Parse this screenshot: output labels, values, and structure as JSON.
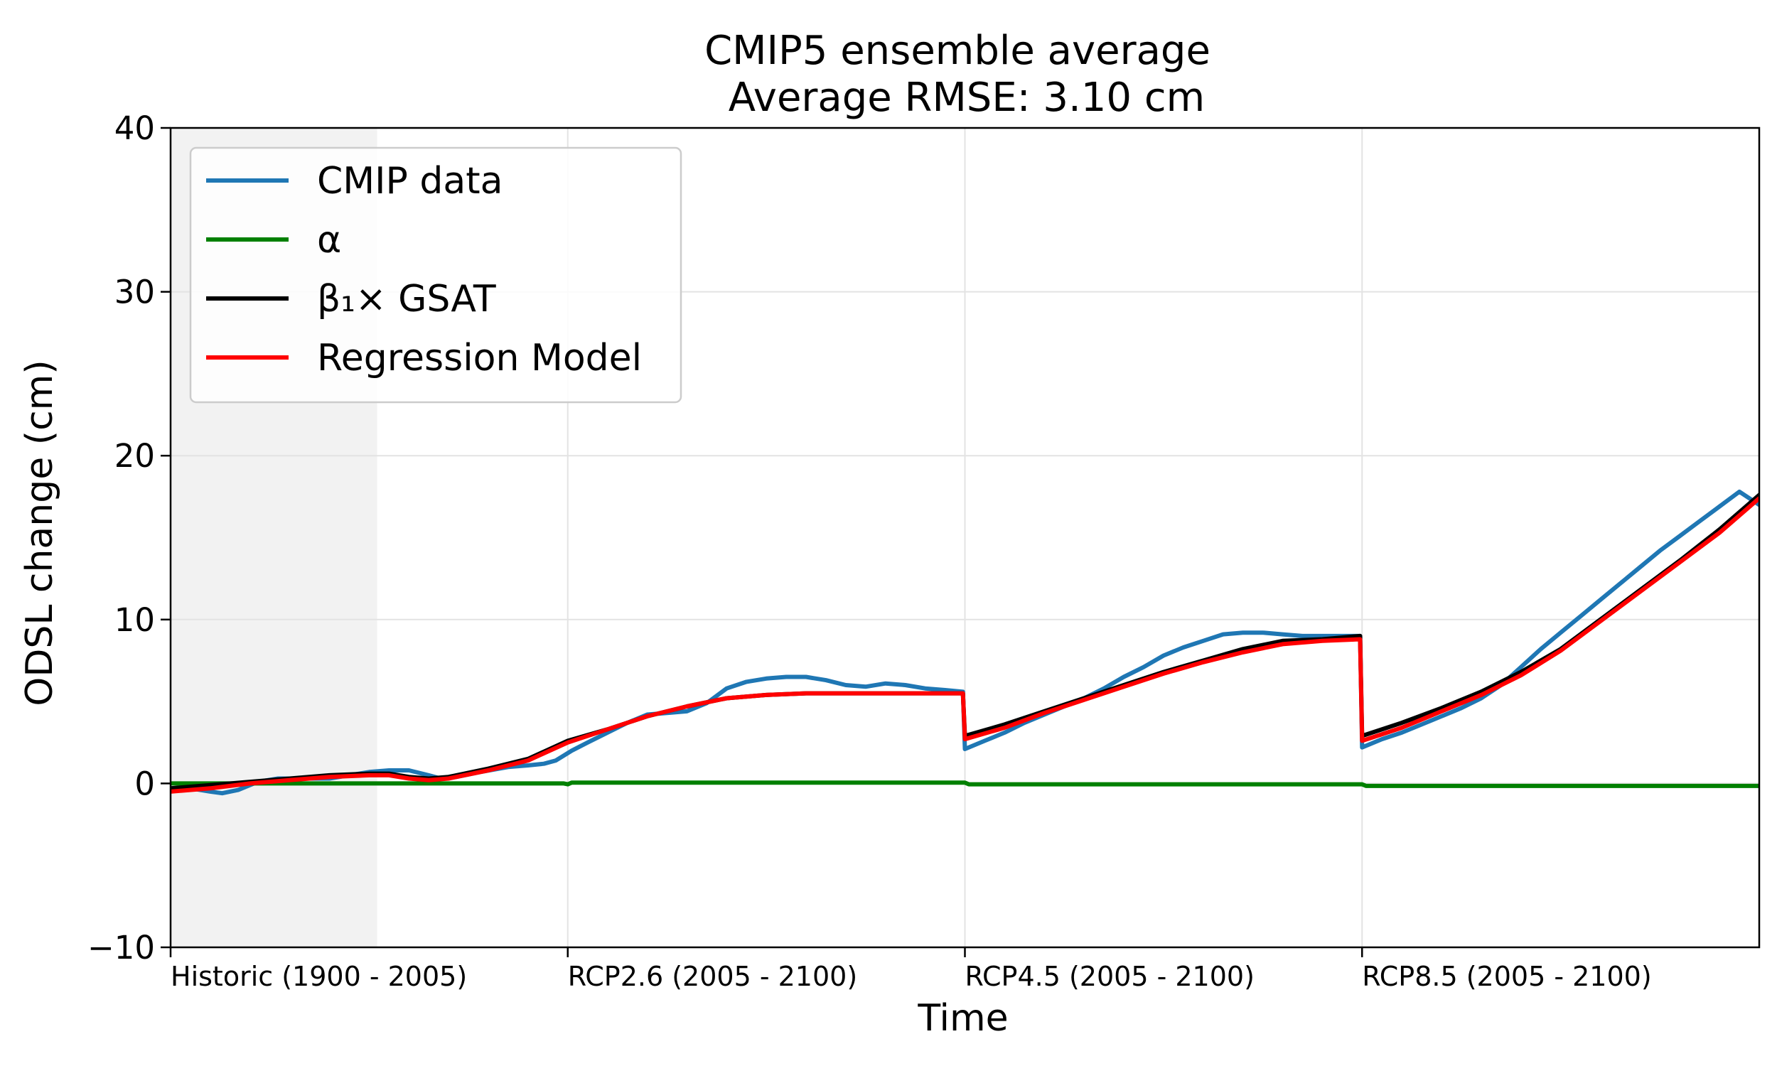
{
  "chart_data": {
    "type": "line",
    "title_line1": "CMIP5 ensemble average",
    "title_line2": "Average RMSE: 3.10 cm",
    "xlabel": "Time",
    "ylabel": "ODSL change (cm)",
    "ylim": [
      -10,
      40
    ],
    "yticks": [
      -10,
      0,
      10,
      20,
      30,
      40
    ],
    "ytick_labels": [
      "−10",
      "0",
      "10",
      "20",
      "30",
      "40"
    ],
    "xlim": [
      0,
      4
    ],
    "xticks": [
      0,
      1,
      2,
      3
    ],
    "xtick_labels": [
      "Historic (1900 - 2005)",
      "RCP2.6 (2005 - 2100)",
      "RCP4.5 (2005 - 2100)",
      "RCP8.5 (2005 - 2100)"
    ],
    "grid": true,
    "legend_position": "upper-left",
    "shaded_region": {
      "x": [
        0,
        0.52
      ],
      "color": "#f2f2f2"
    },
    "series": [
      {
        "name": "CMIP data",
        "color": "#1f77b4",
        "x": [
          0,
          0.05,
          0.1,
          0.13,
          0.17,
          0.22,
          0.27,
          0.33,
          0.4,
          0.45,
          0.5,
          0.55,
          0.6,
          0.65,
          0.68,
          0.72,
          0.78,
          0.85,
          0.9,
          0.94,
          0.97,
          0.99,
          1.01,
          1.05,
          1.1,
          1.15,
          1.2,
          1.25,
          1.3,
          1.35,
          1.4,
          1.45,
          1.5,
          1.55,
          1.6,
          1.65,
          1.7,
          1.75,
          1.8,
          1.85,
          1.9,
          1.95,
          1.995,
          2.0,
          2.05,
          2.1,
          2.15,
          2.2,
          2.25,
          2.3,
          2.35,
          2.4,
          2.45,
          2.5,
          2.55,
          2.6,
          2.65,
          2.7,
          2.75,
          2.8,
          2.85,
          2.9,
          2.95,
          2.995,
          3.0,
          3.05,
          3.1,
          3.15,
          3.2,
          3.25,
          3.3,
          3.35,
          3.4,
          3.45,
          3.5,
          3.55,
          3.6,
          3.65,
          3.7,
          3.75,
          3.8,
          3.85,
          3.9,
          3.95,
          4.0
        ],
        "y": [
          -0.3,
          -0.3,
          -0.5,
          -0.6,
          -0.4,
          0.1,
          0.3,
          0.3,
          0.3,
          0.5,
          0.7,
          0.8,
          0.8,
          0.5,
          0.3,
          0.4,
          0.7,
          1.0,
          1.1,
          1.2,
          1.4,
          1.7,
          2.0,
          2.5,
          3.1,
          3.7,
          4.2,
          4.3,
          4.4,
          4.9,
          5.8,
          6.2,
          6.4,
          6.5,
          6.5,
          6.3,
          6.0,
          5.9,
          6.1,
          6.0,
          5.8,
          5.7,
          5.6,
          2.1,
          2.6,
          3.1,
          3.7,
          4.2,
          4.7,
          5.2,
          5.8,
          6.5,
          7.1,
          7.8,
          8.3,
          8.7,
          9.1,
          9.2,
          9.2,
          9.1,
          9.0,
          9.0,
          9.0,
          9.0,
          2.2,
          2.7,
          3.1,
          3.6,
          4.1,
          4.6,
          5.2,
          6.0,
          7.1,
          8.2,
          9.2,
          10.2,
          11.2,
          12.2,
          13.2,
          14.2,
          15.1,
          16.0,
          16.9,
          17.8,
          17.0
        ]
      },
      {
        "name": "α",
        "color": "#008000",
        "x": [
          0,
          0.99,
          1.0,
          1.01,
          1.99,
          2.0,
          2.01,
          2.99,
          3.0,
          3.01,
          4.0
        ],
        "y": [
          0,
          0,
          -0.05,
          0.05,
          0.05,
          0.05,
          -0.05,
          -0.05,
          -0.05,
          -0.15,
          -0.15
        ]
      },
      {
        "name": "β₁× GSAT",
        "color": "#000000",
        "x": [
          0,
          0.1,
          0.2,
          0.3,
          0.4,
          0.5,
          0.55,
          0.6,
          0.65,
          0.7,
          0.8,
          0.9,
          1.0,
          1.1,
          1.2,
          1.3,
          1.4,
          1.5,
          1.6,
          1.7,
          1.8,
          1.9,
          1.995,
          2.0,
          2.1,
          2.2,
          2.3,
          2.4,
          2.5,
          2.6,
          2.7,
          2.8,
          2.9,
          2.995,
          3.0,
          3.1,
          3.2,
          3.3,
          3.4,
          3.5,
          3.6,
          3.7,
          3.8,
          3.9,
          4.0
        ],
        "y": [
          -0.3,
          -0.1,
          0.1,
          0.3,
          0.5,
          0.6,
          0.6,
          0.4,
          0.3,
          0.4,
          0.9,
          1.5,
          2.6,
          3.3,
          4.1,
          4.7,
          5.2,
          5.4,
          5.5,
          5.5,
          5.5,
          5.5,
          5.5,
          2.9,
          3.6,
          4.4,
          5.2,
          6.0,
          6.8,
          7.5,
          8.2,
          8.7,
          8.8,
          9.0,
          2.9,
          3.7,
          4.6,
          5.6,
          6.8,
          8.2,
          10.0,
          11.8,
          13.6,
          15.5,
          17.6
        ]
      },
      {
        "name": "Regression Model",
        "color": "#ff0000",
        "x": [
          0,
          0.1,
          0.2,
          0.3,
          0.4,
          0.5,
          0.55,
          0.6,
          0.65,
          0.7,
          0.8,
          0.9,
          1.0,
          1.1,
          1.2,
          1.3,
          1.4,
          1.5,
          1.6,
          1.7,
          1.8,
          1.9,
          1.995,
          2.0,
          2.1,
          2.2,
          2.3,
          2.4,
          2.5,
          2.6,
          2.7,
          2.8,
          2.9,
          2.995,
          3.0,
          3.1,
          3.2,
          3.3,
          3.4,
          3.5,
          3.6,
          3.7,
          3.8,
          3.9,
          4.0
        ],
        "y": [
          -0.5,
          -0.3,
          0.0,
          0.2,
          0.4,
          0.5,
          0.5,
          0.3,
          0.2,
          0.3,
          0.8,
          1.4,
          2.5,
          3.3,
          4.1,
          4.7,
          5.2,
          5.4,
          5.5,
          5.5,
          5.5,
          5.5,
          5.5,
          2.7,
          3.4,
          4.3,
          5.1,
          5.9,
          6.7,
          7.4,
          8.0,
          8.5,
          8.7,
          8.8,
          2.6,
          3.4,
          4.4,
          5.4,
          6.6,
          8.1,
          9.9,
          11.7,
          13.5,
          15.3,
          17.4
        ]
      }
    ]
  }
}
